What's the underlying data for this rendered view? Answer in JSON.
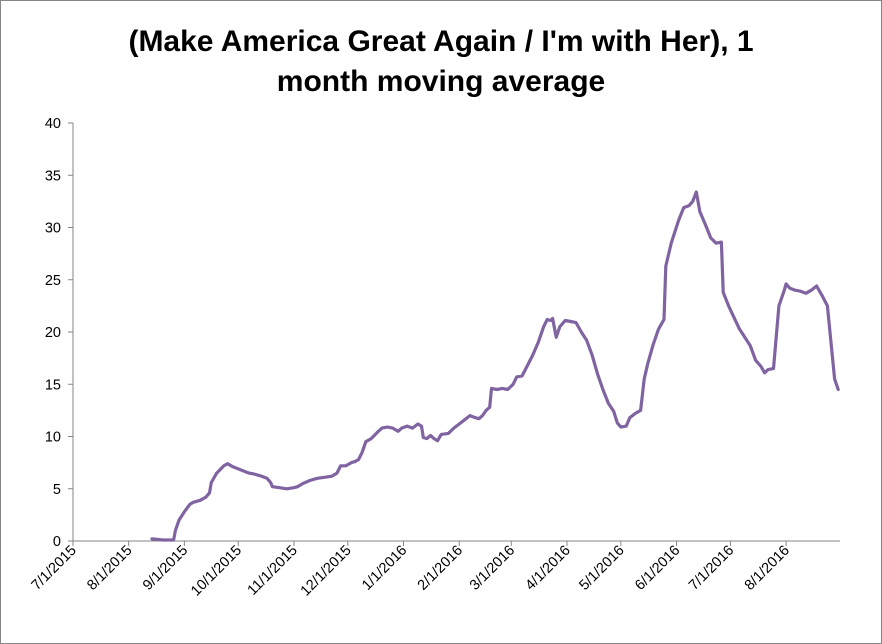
{
  "chart_data": {
    "type": "line",
    "title": "(Make America Great Again / I'm with Her), 1 month moving average",
    "title_lines": [
      "(Make America Great Again / I'm with Her), 1",
      "month moving average"
    ],
    "xlabel": "",
    "ylabel": "",
    "ylim": [
      0,
      40
    ],
    "y_ticks": [
      0,
      5,
      10,
      15,
      20,
      25,
      30,
      35,
      40
    ],
    "x_tick_labels": [
      "7/1/2015",
      "8/1/2015",
      "9/1/2015",
      "10/1/2015",
      "11/1/2015",
      "12/1/2015",
      "1/1/2016",
      "2/1/2016",
      "3/1/2016",
      "4/1/2016",
      "5/1/2016",
      "6/1/2016",
      "7/1/2016",
      "8/1/2016"
    ],
    "xlim": [
      "2015-07-01",
      "2016-08-31"
    ],
    "grid": false,
    "legend": "none",
    "line_color": "#8064A2",
    "series": [
      {
        "points": [
          [
            "2015-08-14",
            0.2
          ],
          [
            "2015-08-20",
            0.1
          ],
          [
            "2015-08-26",
            0.1
          ],
          [
            "2015-08-27",
            1.0
          ],
          [
            "2015-08-29",
            2.0
          ],
          [
            "2015-09-01",
            2.8
          ],
          [
            "2015-09-04",
            3.5
          ],
          [
            "2015-09-06",
            3.7
          ],
          [
            "2015-09-10",
            3.9
          ],
          [
            "2015-09-13",
            4.2
          ],
          [
            "2015-09-15",
            4.6
          ],
          [
            "2015-09-16",
            5.6
          ],
          [
            "2015-09-19",
            6.5
          ],
          [
            "2015-09-23",
            7.2
          ],
          [
            "2015-09-25",
            7.4
          ],
          [
            "2015-09-28",
            7.1
          ],
          [
            "2015-10-01",
            6.9
          ],
          [
            "2015-10-04",
            6.7
          ],
          [
            "2015-10-07",
            6.5
          ],
          [
            "2015-10-10",
            6.4
          ],
          [
            "2015-10-14",
            6.2
          ],
          [
            "2015-10-17",
            6.0
          ],
          [
            "2015-10-19",
            5.6
          ],
          [
            "2015-10-20",
            5.2
          ],
          [
            "2015-10-24",
            5.1
          ],
          [
            "2015-10-28",
            5.0
          ],
          [
            "2015-11-01",
            5.1
          ],
          [
            "2015-11-03",
            5.2
          ],
          [
            "2015-11-06",
            5.5
          ],
          [
            "2015-11-10",
            5.8
          ],
          [
            "2015-11-14",
            6.0
          ],
          [
            "2015-11-18",
            6.1
          ],
          [
            "2015-11-22",
            6.2
          ],
          [
            "2015-11-25",
            6.5
          ],
          [
            "2015-11-27",
            7.2
          ],
          [
            "2015-11-30",
            7.2
          ],
          [
            "2015-12-03",
            7.5
          ],
          [
            "2015-12-05",
            7.6
          ],
          [
            "2015-12-07",
            7.8
          ],
          [
            "2015-12-09",
            8.5
          ],
          [
            "2015-12-11",
            9.5
          ],
          [
            "2015-12-14",
            9.8
          ],
          [
            "2015-12-18",
            10.5
          ],
          [
            "2015-12-20",
            10.8
          ],
          [
            "2015-12-23",
            10.9
          ],
          [
            "2015-12-26",
            10.8
          ],
          [
            "2015-12-29",
            10.5
          ],
          [
            "2015-12-31",
            10.8
          ],
          [
            "2016-01-03",
            11.0
          ],
          [
            "2016-01-06",
            10.8
          ],
          [
            "2016-01-09",
            11.2
          ],
          [
            "2016-01-11",
            11.0
          ],
          [
            "2016-01-12",
            9.9
          ],
          [
            "2016-01-14",
            9.8
          ],
          [
            "2016-01-16",
            10.1
          ],
          [
            "2016-01-18",
            9.8
          ],
          [
            "2016-01-20",
            9.6
          ],
          [
            "2016-01-22",
            10.2
          ],
          [
            "2016-01-26",
            10.3
          ],
          [
            "2016-01-29",
            10.8
          ],
          [
            "2016-02-01",
            11.2
          ],
          [
            "2016-02-04",
            11.6
          ],
          [
            "2016-02-07",
            12.0
          ],
          [
            "2016-02-10",
            11.8
          ],
          [
            "2016-02-12",
            11.7
          ],
          [
            "2016-02-14",
            12.0
          ],
          [
            "2016-02-16",
            12.5
          ],
          [
            "2016-02-18",
            12.8
          ],
          [
            "2016-02-19",
            14.6
          ],
          [
            "2016-02-22",
            14.5
          ],
          [
            "2016-02-25",
            14.6
          ],
          [
            "2016-02-28",
            14.5
          ],
          [
            "2016-03-02",
            15.0
          ],
          [
            "2016-03-04",
            15.7
          ],
          [
            "2016-03-07",
            15.8
          ],
          [
            "2016-03-10",
            16.8
          ],
          [
            "2016-03-13",
            17.8
          ],
          [
            "2016-03-16",
            19.0
          ],
          [
            "2016-03-19",
            20.5
          ],
          [
            "2016-03-21",
            21.2
          ],
          [
            "2016-03-23",
            21.1
          ],
          [
            "2016-03-24",
            21.3
          ],
          [
            "2016-03-26",
            19.5
          ],
          [
            "2016-03-28",
            20.5
          ],
          [
            "2016-03-31",
            21.1
          ],
          [
            "2016-04-03",
            21.0
          ],
          [
            "2016-04-06",
            20.9
          ],
          [
            "2016-04-09",
            20.0
          ],
          [
            "2016-04-12",
            19.2
          ],
          [
            "2016-04-15",
            17.8
          ],
          [
            "2016-04-18",
            16.0
          ],
          [
            "2016-04-21",
            14.5
          ],
          [
            "2016-04-24",
            13.2
          ],
          [
            "2016-04-27",
            12.4
          ],
          [
            "2016-04-29",
            11.3
          ],
          [
            "2016-05-01",
            10.9
          ],
          [
            "2016-05-04",
            11.0
          ],
          [
            "2016-05-06",
            11.8
          ],
          [
            "2016-05-09",
            12.2
          ],
          [
            "2016-05-12",
            12.5
          ],
          [
            "2016-05-14",
            15.5
          ],
          [
            "2016-05-16",
            17.0
          ],
          [
            "2016-05-19",
            18.8
          ],
          [
            "2016-05-22",
            20.3
          ],
          [
            "2016-05-25",
            21.2
          ],
          [
            "2016-05-26",
            26.3
          ],
          [
            "2016-05-29",
            28.5
          ],
          [
            "2016-06-02",
            30.6
          ],
          [
            "2016-06-05",
            31.9
          ],
          [
            "2016-06-08",
            32.1
          ],
          [
            "2016-06-10",
            32.5
          ],
          [
            "2016-06-12",
            33.4
          ],
          [
            "2016-06-14",
            31.5
          ],
          [
            "2016-06-17",
            30.3
          ],
          [
            "2016-06-20",
            29.0
          ],
          [
            "2016-06-23",
            28.5
          ],
          [
            "2016-06-26",
            28.6
          ],
          [
            "2016-06-27",
            23.8
          ],
          [
            "2016-06-30",
            22.5
          ],
          [
            "2016-07-03",
            21.4
          ],
          [
            "2016-07-06",
            20.3
          ],
          [
            "2016-07-09",
            19.5
          ],
          [
            "2016-07-12",
            18.7
          ],
          [
            "2016-07-15",
            17.3
          ],
          [
            "2016-07-18",
            16.7
          ],
          [
            "2016-07-20",
            16.1
          ],
          [
            "2016-07-22",
            16.4
          ],
          [
            "2016-07-25",
            16.5
          ],
          [
            "2016-07-28",
            22.5
          ],
          [
            "2016-07-31",
            24.0
          ],
          [
            "2016-08-01",
            24.6
          ],
          [
            "2016-08-03",
            24.2
          ],
          [
            "2016-08-06",
            24.0
          ],
          [
            "2016-08-09",
            23.9
          ],
          [
            "2016-08-12",
            23.7
          ],
          [
            "2016-08-15",
            24.0
          ],
          [
            "2016-08-18",
            24.4
          ],
          [
            "2016-08-21",
            23.5
          ],
          [
            "2016-08-24",
            22.5
          ],
          [
            "2016-08-26",
            19.0
          ],
          [
            "2016-08-28",
            15.5
          ],
          [
            "2016-08-30",
            14.5
          ]
        ]
      }
    ]
  }
}
